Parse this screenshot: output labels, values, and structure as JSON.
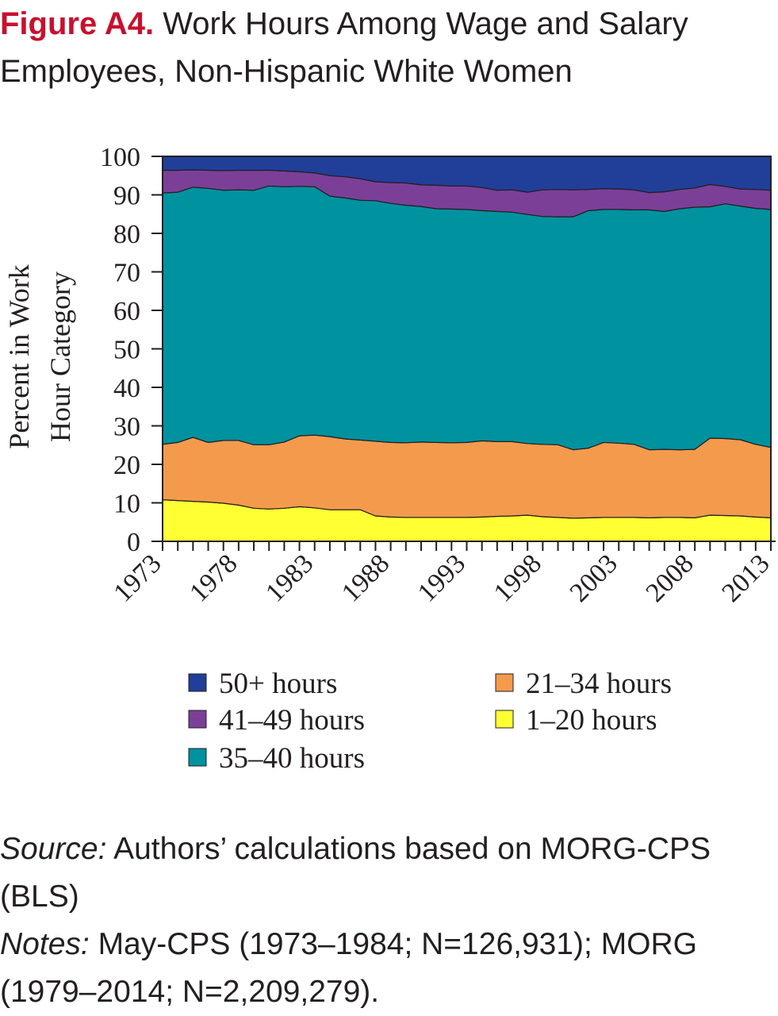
{
  "figure_label": "Figure A4.",
  "figure_title": "Work Hours Among Wage and Salary Employees, Non-Hispanic White Women",
  "source_label": "Source:",
  "source_text": "Authors’ calculations based on MORG-CPS (BLS)",
  "notes_label": "Notes:",
  "notes_text": "May-CPS (1973–1984; N=126,931); MORG (1979–2014; N=2,209,279).",
  "chart_data": {
    "type": "area",
    "stacked": true,
    "ylabel": "Percent in Work Hour Category",
    "ylim": [
      0,
      100
    ],
    "yticks": [
      "0",
      "10",
      "20",
      "30",
      "40",
      "50",
      "60",
      "70",
      "80",
      "90",
      "100"
    ],
    "xticks": [
      "1973",
      "1978",
      "1983",
      "1988",
      "1993",
      "1998",
      "2003",
      "2008",
      "2013"
    ],
    "x": [
      1973,
      1974,
      1975,
      1976,
      1977,
      1978,
      1979,
      1980,
      1981,
      1982,
      1983,
      1984,
      1985,
      1986,
      1987,
      1988,
      1989,
      1990,
      1991,
      1992,
      1993,
      1994,
      1995,
      1996,
      1997,
      1998,
      1999,
      2000,
      2001,
      2002,
      2003,
      2004,
      2005,
      2006,
      2007,
      2008,
      2009,
      2010,
      2011,
      2012,
      2013
    ],
    "legend_position": "bottom",
    "series": [
      {
        "name": "1–20 hours",
        "color": "#ffff33",
        "values": [
          10.8,
          10.6,
          10.4,
          10.2,
          9.9,
          9.4,
          8.6,
          8.4,
          8.6,
          9.0,
          8.7,
          8.2,
          8.2,
          8.2,
          6.6,
          6.3,
          6.2,
          6.2,
          6.2,
          6.2,
          6.2,
          6.3,
          6.5,
          6.6,
          6.8,
          6.4,
          6.2,
          6.0,
          6.1,
          6.2,
          6.2,
          6.2,
          6.1,
          6.2,
          6.2,
          6.1,
          6.8,
          6.7,
          6.6,
          6.3,
          6.1
        ]
      },
      {
        "name": "21–34 hours",
        "color": "#f39a4d",
        "values": [
          14.4,
          15.1,
          16.6,
          15.5,
          16.3,
          16.8,
          16.5,
          16.7,
          17.2,
          18.4,
          18.9,
          19.0,
          18.4,
          18.1,
          19.4,
          19.4,
          19.4,
          19.6,
          19.5,
          19.4,
          19.5,
          19.8,
          19.4,
          19.3,
          18.6,
          18.8,
          18.9,
          17.8,
          18.1,
          19.5,
          19.3,
          19.0,
          17.7,
          17.7,
          17.6,
          17.8,
          20.0,
          20.0,
          19.8,
          18.9,
          18.3
        ]
      },
      {
        "name": "35–40 hours",
        "color": "#00929f",
        "values": [
          65.3,
          65.0,
          65.0,
          66.0,
          65.0,
          65.1,
          66.1,
          67.2,
          66.3,
          64.8,
          64.5,
          62.5,
          62.6,
          62.3,
          62.5,
          62.1,
          61.7,
          61.2,
          60.7,
          60.7,
          60.5,
          59.8,
          59.8,
          59.6,
          59.5,
          59.2,
          59.2,
          60.5,
          61.7,
          60.5,
          60.7,
          60.9,
          62.3,
          61.8,
          62.6,
          62.9,
          60.1,
          61.0,
          60.7,
          61.3,
          61.8
        ]
      },
      {
        "name": "41–49 hours",
        "color": "#7b3f98",
        "values": [
          5.9,
          5.7,
          4.5,
          4.7,
          5.1,
          5.1,
          5.2,
          4.1,
          4.1,
          3.8,
          3.6,
          5.3,
          5.5,
          5.6,
          4.9,
          5.4,
          5.8,
          5.6,
          6.1,
          6.0,
          6.1,
          6.0,
          5.5,
          5.8,
          5.8,
          6.9,
          7.1,
          7.0,
          5.5,
          5.4,
          5.3,
          5.2,
          4.5,
          5.1,
          5.0,
          5.0,
          5.8,
          4.5,
          4.4,
          4.9,
          5.0
        ]
      },
      {
        "name": "50+ hours",
        "color": "#213f99",
        "values": [
          3.6,
          3.6,
          3.5,
          3.6,
          3.7,
          3.6,
          3.6,
          3.6,
          3.8,
          4.0,
          4.3,
          5.0,
          5.3,
          5.8,
          6.6,
          6.8,
          6.9,
          7.4,
          7.5,
          7.7,
          7.7,
          8.1,
          8.8,
          8.7,
          9.3,
          8.7,
          8.6,
          8.7,
          8.6,
          8.4,
          8.5,
          8.7,
          9.4,
          9.2,
          8.6,
          8.2,
          7.3,
          7.8,
          8.5,
          8.6,
          8.8
        ]
      }
    ],
    "legend": [
      {
        "name": "50+ hours",
        "color": "#213f99"
      },
      {
        "name": "41–49 hours",
        "color": "#7b3f98"
      },
      {
        "name": "35–40 hours",
        "color": "#00929f"
      },
      {
        "name": "21–34 hours",
        "color": "#f39a4d"
      },
      {
        "name": "1–20 hours",
        "color": "#ffff33"
      }
    ]
  }
}
